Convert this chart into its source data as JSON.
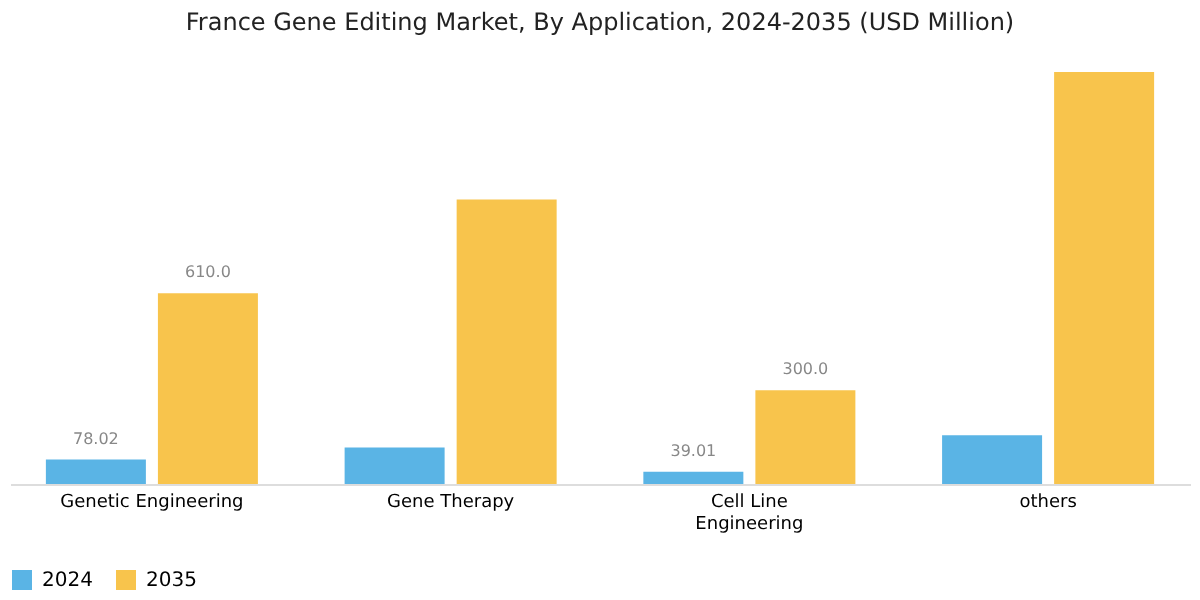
{
  "chart_data": {
    "type": "bar",
    "title": "France Gene Editing Market, By Application, 2024-2035 (USD Million)",
    "categories": [
      "Genetic Engineering",
      "Gene Therapy",
      "Cell Line Engineering",
      "others"
    ],
    "series": [
      {
        "name": "2024",
        "color": "#5ab4e5",
        "values": [
          78.02,
          117,
          39.01,
          156
        ],
        "value_labels": [
          "78.02",
          null,
          "39.01",
          null
        ]
      },
      {
        "name": "2035",
        "color": "#f8c44c",
        "values": [
          610.0,
          910,
          300.0,
          1318
        ],
        "value_labels": [
          "610.0",
          null,
          "300.0",
          null
        ]
      }
    ],
    "legend": "bottom",
    "grid": false
  }
}
